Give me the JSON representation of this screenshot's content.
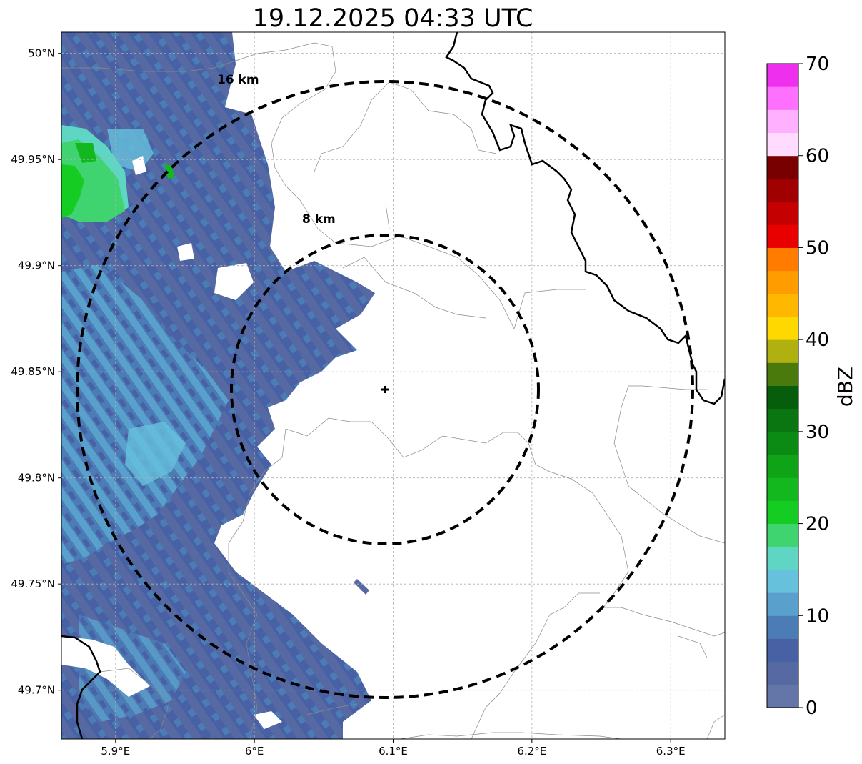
{
  "title": "19.12.2025 04:33 UTC",
  "map": {
    "lon_range": [
      5.861,
      6.339
    ],
    "lat_range": [
      49.677,
      50.01
    ],
    "lon_ticks": [
      {
        "value": 5.9,
        "label": "5.9°E"
      },
      {
        "value": 6.0,
        "label": "6°E"
      },
      {
        "value": 6.1,
        "label": "6.1°E"
      },
      {
        "value": 6.2,
        "label": "6.2°E"
      },
      {
        "value": 6.3,
        "label": "6.3°E"
      }
    ],
    "lat_ticks": [
      {
        "value": 50.0,
        "label": "50°N"
      },
      {
        "value": 49.95,
        "label": "49.95°N"
      },
      {
        "value": 49.9,
        "label": "49.9°N"
      },
      {
        "value": 49.85,
        "label": "49.85°N"
      },
      {
        "value": 49.8,
        "label": "49.8°N"
      },
      {
        "value": 49.75,
        "label": "49.75°N"
      },
      {
        "value": 49.7,
        "label": "49.7°N"
      }
    ],
    "gridlines": true,
    "radar_site": {
      "lon": 6.095,
      "lat": 49.842
    },
    "range_rings": [
      {
        "radius_km": 8,
        "label": "8 km"
      },
      {
        "radius_km": 16,
        "label": "16 km"
      }
    ]
  },
  "colorbar": {
    "label": "dBZ",
    "min": 0,
    "max": 70,
    "step": 2.5,
    "ticks": [
      {
        "value": 0,
        "label": "0"
      },
      {
        "value": 10,
        "label": "10"
      },
      {
        "value": 20,
        "label": "20"
      },
      {
        "value": 30,
        "label": "30"
      },
      {
        "value": 40,
        "label": "40"
      },
      {
        "value": 50,
        "label": "50"
      },
      {
        "value": 60,
        "label": "60"
      },
      {
        "value": 70,
        "label": "70"
      }
    ],
    "colors": [
      "#6475a8",
      "#5669a3",
      "#4861a5",
      "#4b7cb5",
      "#5aa0cc",
      "#66c1dd",
      "#5fd6c4",
      "#3fd470",
      "#15cc22",
      "#12b81e",
      "#0fa318",
      "#0b8a14",
      "#0a7612",
      "#065e0c",
      "#4a7a0c",
      "#b0b010",
      "#ffd800",
      "#ffb800",
      "#ff9c00",
      "#ff7c00",
      "#e80000",
      "#c40000",
      "#a00000",
      "#780000",
      "#ffdcff",
      "#ffb0ff",
      "#ff70ff",
      "#ee30ee"
    ]
  },
  "echo_colors": {
    "weak": "#5669a3",
    "moderate": "#4b7cb5",
    "light_blue": "#5aa0cc",
    "cyan": "#66c1dd",
    "teal": "#5fd6c4",
    "green": "#15cc22"
  }
}
